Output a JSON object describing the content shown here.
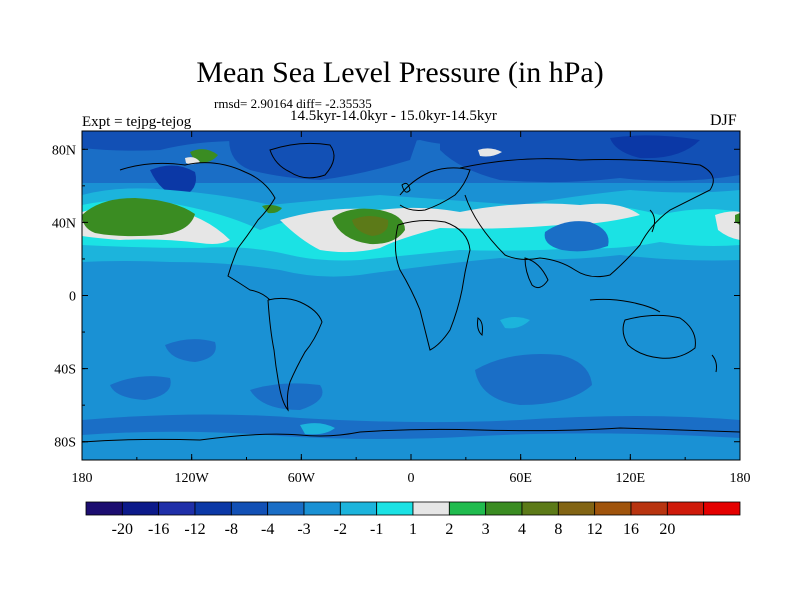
{
  "title": "Mean Sea Level Pressure (in hPa)",
  "stats_line": "rmsd= 2.90164 diff= -2.35535",
  "period_line": "14.5kyr-14.0kyr - 15.0kyr-14.5kyr",
  "experiment_label": "Expt = tejpg-tejog",
  "season_label": "DJF",
  "map": {
    "projection": "cylindrical-equidistant",
    "lon_range": [
      -180,
      180
    ],
    "lat_range": [
      -90,
      90
    ],
    "lon_ticks": [
      {
        "value": -180,
        "label": "180"
      },
      {
        "value": -120,
        "label": "120W"
      },
      {
        "value": -60,
        "label": "60W"
      },
      {
        "value": 0,
        "label": "0"
      },
      {
        "value": 60,
        "label": "60E"
      },
      {
        "value": 120,
        "label": "120E"
      },
      {
        "value": 180,
        "label": "180"
      }
    ],
    "lat_ticks": [
      {
        "value": 80,
        "label": "80N"
      },
      {
        "value": 40,
        "label": "40N"
      },
      {
        "value": 0,
        "label": "0"
      },
      {
        "value": -40,
        "label": "40S"
      },
      {
        "value": -80,
        "label": "80S"
      }
    ]
  },
  "colorbar": {
    "colors": [
      "#1c0d70",
      "#0c1a8a",
      "#1f2fa8",
      "#0b38a6",
      "#1250b5",
      "#1a6ec6",
      "#1a91d4",
      "#1cb4dc",
      "#1be2e4",
      "#e6e6e6",
      "#20bb4e",
      "#3a8c22",
      "#5c7a18",
      "#826414",
      "#a0540c",
      "#b83410",
      "#cf1a0a",
      "#e40000"
    ],
    "labels": [
      "-20",
      "-16",
      "-12",
      "-8",
      "-4",
      "-3",
      "-2",
      "-1",
      "1",
      "2",
      "3",
      "4",
      "8",
      "12",
      "16",
      "20"
    ]
  }
}
